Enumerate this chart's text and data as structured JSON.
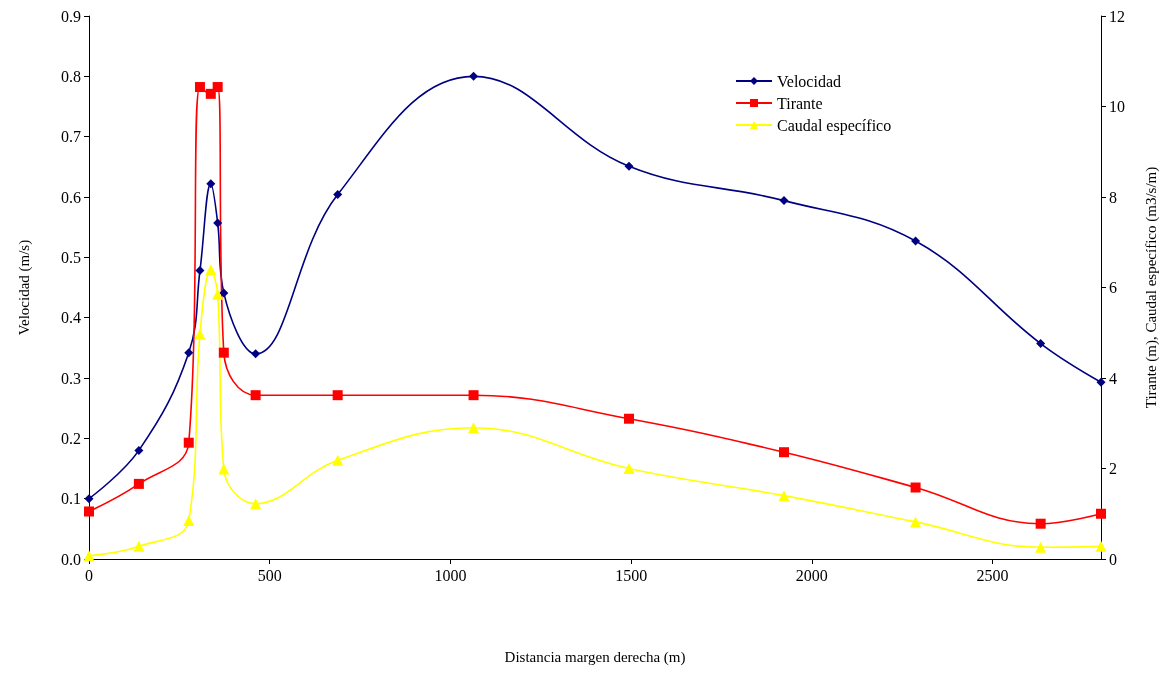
{
  "chart_data": {
    "type": "line",
    "xlabel": "Distancia margen derecha (m)",
    "ylabel": "Velocidad (m/s)",
    "y2label": "Tirante (m), Caudal específico (m3/s/m)",
    "x": [
      0,
      138,
      276,
      307,
      337,
      356,
      373,
      461,
      688,
      1064,
      1494,
      1923,
      2287,
      2633,
      2800
    ],
    "series": [
      {
        "name": "Velocidad",
        "color": "#000080",
        "marker": "diamond",
        "values": [
          0.1,
          0.18,
          0.342,
          0.478,
          0.622,
          0.557,
          0.441,
          0.34,
          0.604,
          0.8,
          0.651,
          0.594,
          0.527,
          0.357,
          0.293
        ]
      },
      {
        "name": "Tirante",
        "color": "#ff0000",
        "marker": "square",
        "axis": "y2",
        "values": [
          1.05,
          1.66,
          2.57,
          10.43,
          10.28,
          10.43,
          4.56,
          3.62,
          3.62,
          3.62,
          3.1,
          2.36,
          1.58,
          0.78,
          1.0
        ]
      },
      {
        "name": "Caudal específico",
        "color": "#ffff00",
        "marker": "triangle",
        "axis": "y2",
        "values": [
          0.07,
          0.28,
          0.85,
          4.97,
          6.39,
          5.85,
          1.99,
          1.22,
          2.18,
          2.9,
          2.0,
          1.4,
          0.82,
          0.26,
          0.28
        ]
      }
    ],
    "xlim": [
      0,
      2800
    ],
    "xticks": [
      0,
      500,
      1000,
      1500,
      2000,
      2500
    ],
    "ylim": [
      0,
      0.9
    ],
    "yticks": [
      {
        "value": 0,
        "label": "0.0"
      },
      {
        "value": 0.1,
        "label": "0.1"
      },
      {
        "value": 0.2,
        "label": "0.2"
      },
      {
        "value": 0.3,
        "label": "0.3"
      },
      {
        "value": 0.4,
        "label": "0.4"
      },
      {
        "value": 0.5,
        "label": "0.5"
      },
      {
        "value": 0.6,
        "label": "0.6"
      },
      {
        "value": 0.7,
        "label": "0.7"
      },
      {
        "value": 0.8,
        "label": "0.8"
      },
      {
        "value": 0.9,
        "label": "0.9"
      }
    ],
    "y2lim": [
      0,
      12
    ],
    "y2ticks": [
      0,
      2,
      4,
      6,
      8,
      10,
      12
    ],
    "legend": "top right",
    "grid": false,
    "line_style": "solid"
  }
}
